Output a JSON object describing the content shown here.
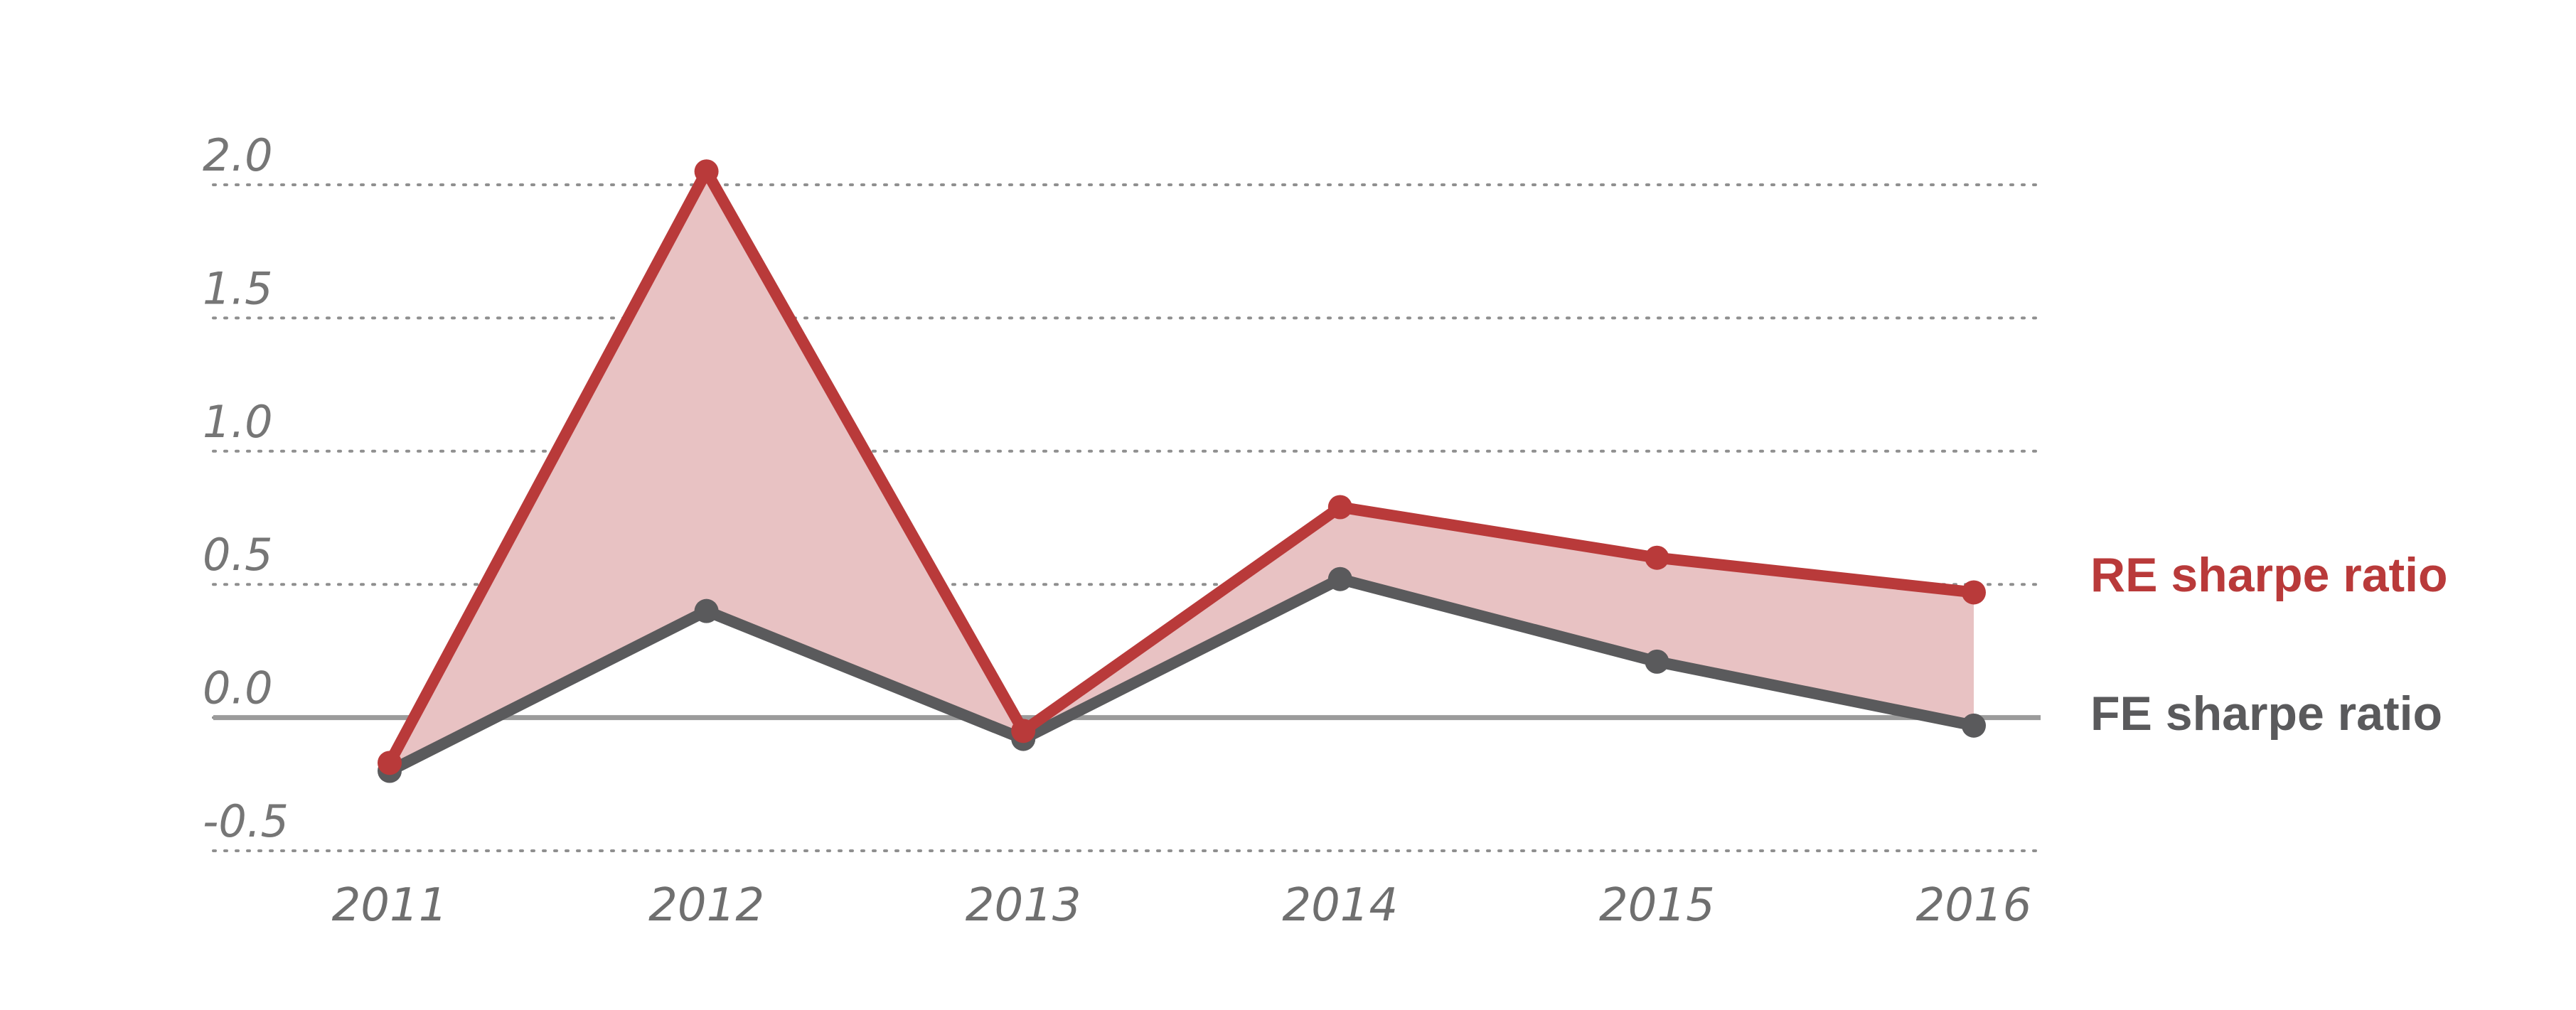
{
  "chart_data": {
    "type": "line",
    "x": [
      "2011",
      "2012",
      "2013",
      "2014",
      "2015",
      "2016"
    ],
    "series": [
      {
        "name": "RE sharpe ratio",
        "values": [
          -0.17,
          2.05,
          -0.05,
          0.79,
          0.6,
          0.47
        ],
        "color": "#b93a3a"
      },
      {
        "name": "FE sharpe ratio",
        "values": [
          -0.2,
          0.4,
          -0.08,
          0.52,
          0.21,
          -0.03
        ],
        "color": "#5a5a5c"
      }
    ],
    "fill_between": {
      "color": "#e8c2c3"
    },
    "ylim": [
      -0.5,
      2.0
    ],
    "yticks": [
      "2.0",
      "1.5",
      "1.0",
      "0.5",
      "0.0",
      "-0.5"
    ],
    "yticks_values": [
      2.0,
      1.5,
      1.0,
      0.5,
      0.0,
      -0.5
    ],
    "grid": true,
    "legend": "right",
    "title": "",
    "xlabel": "",
    "ylabel": ""
  }
}
